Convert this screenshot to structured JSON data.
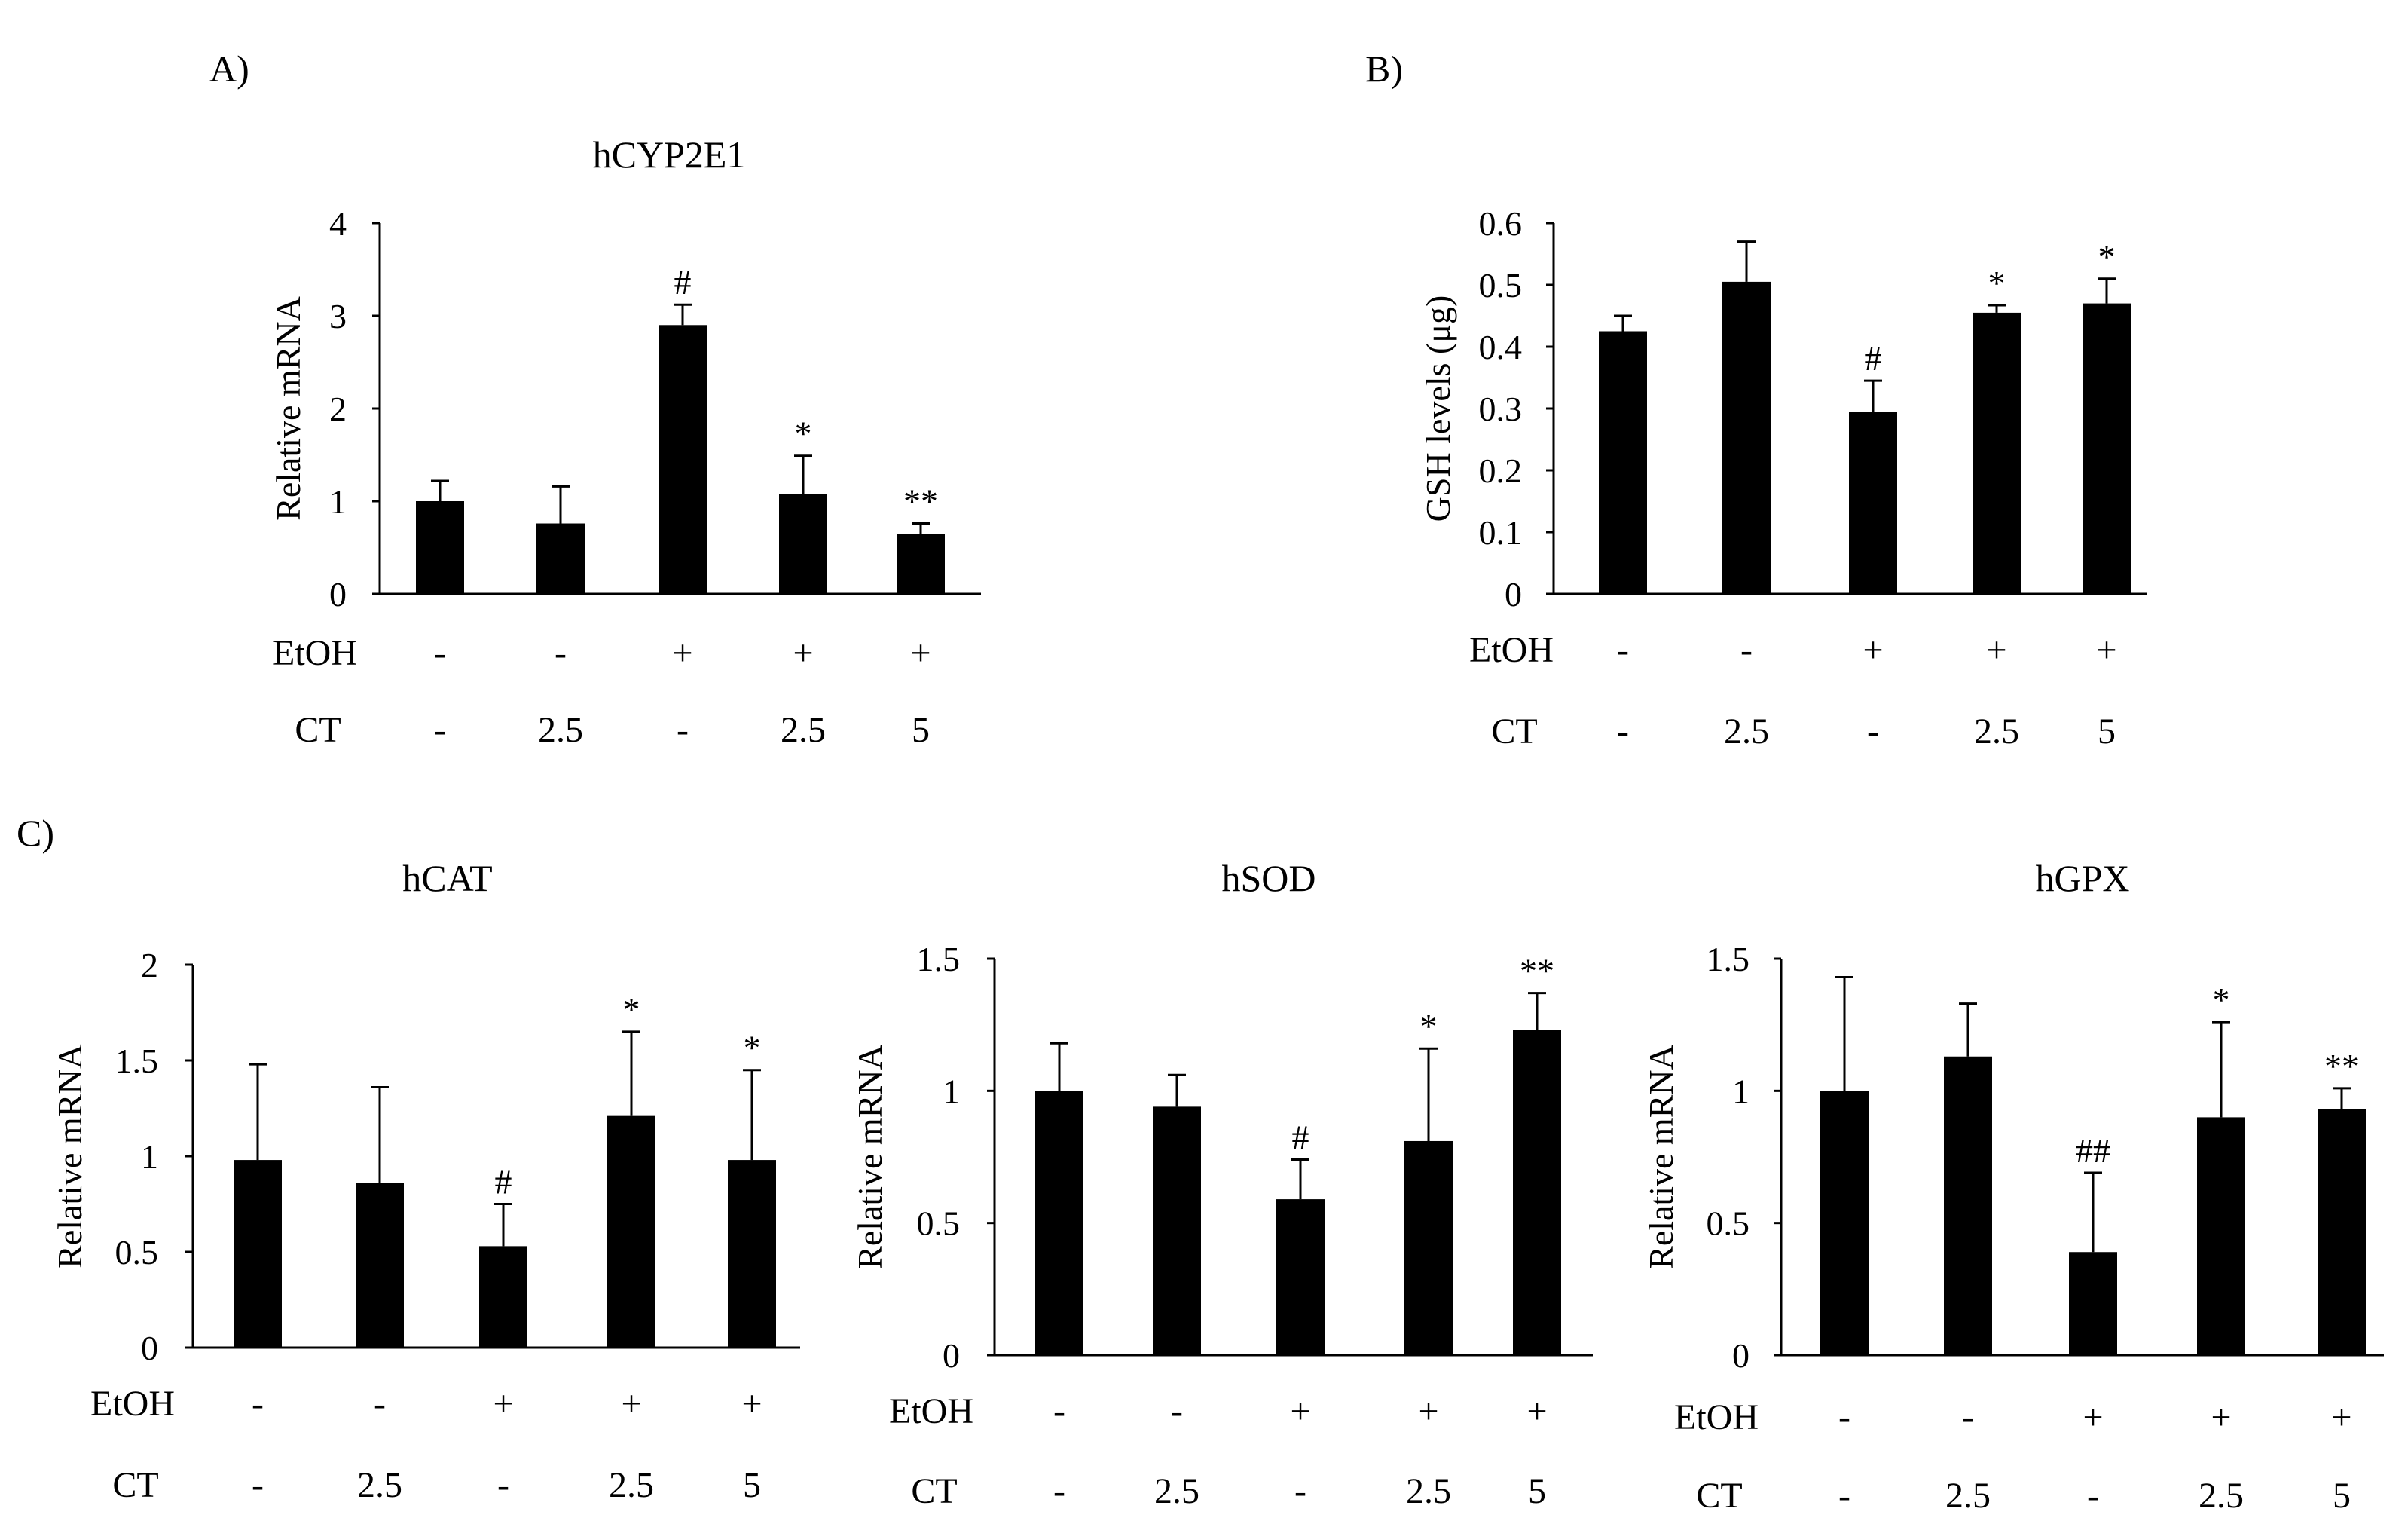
{
  "panel_labels": {
    "a": "A)",
    "b": "B)",
    "c": "C)"
  },
  "conditions": {
    "etoh_label": "EtOH",
    "ct_label": "CT",
    "etoh": [
      "-",
      "-",
      "+",
      "+",
      "+"
    ],
    "ct": [
      "-",
      "2.5",
      "-",
      "2.5",
      "5"
    ]
  },
  "colors": {
    "bar": "#000000",
    "axis": "#000000",
    "background": "#ffffff"
  },
  "chart_data": [
    {
      "id": "cyp2e1",
      "type": "bar",
      "title": "hCYP2E1",
      "ylabel": "Relative mRNA",
      "ylim": [
        0,
        4
      ],
      "yticks": [
        "0",
        "1",
        "2",
        "3",
        "4"
      ],
      "values": [
        1.0,
        0.76,
        2.9,
        1.08,
        0.65
      ],
      "errors": [
        0.22,
        0.4,
        0.22,
        0.41,
        0.11
      ],
      "annotations": [
        "",
        "",
        "#",
        "*",
        "**"
      ]
    },
    {
      "id": "gsh",
      "type": "bar",
      "title": "",
      "ylabel": "GSH levels  (μg)",
      "ylim": [
        0,
        0.6
      ],
      "yticks": [
        "0",
        "0.1",
        "0.2",
        "0.3",
        "0.4",
        "0.5",
        "0.6"
      ],
      "values": [
        0.425,
        0.505,
        0.295,
        0.455,
        0.47
      ],
      "errors": [
        0.025,
        0.065,
        0.05,
        0.012,
        0.04
      ],
      "annotations": [
        "",
        "",
        "#",
        "*",
        "*"
      ]
    },
    {
      "id": "cat",
      "type": "bar",
      "title": "hCAT",
      "ylabel": "Relative mRNA",
      "ylim": [
        0,
        2
      ],
      "yticks": [
        "0",
        "0.5",
        "1",
        "1.5",
        "2"
      ],
      "values": [
        0.98,
        0.86,
        0.53,
        1.21,
        0.98
      ],
      "errors": [
        0.5,
        0.5,
        0.22,
        0.44,
        0.47
      ],
      "annotations": [
        "",
        "",
        "#",
        "*",
        "*"
      ]
    },
    {
      "id": "sod",
      "type": "bar",
      "title": "hSOD",
      "ylabel": "Relative mRNA",
      "ylim": [
        0,
        1.5
      ],
      "yticks": [
        "0",
        "0.5",
        "1",
        "1.5"
      ],
      "values": [
        1.0,
        0.94,
        0.59,
        0.81,
        1.23
      ],
      "errors": [
        0.18,
        0.12,
        0.15,
        0.35,
        0.14
      ],
      "annotations": [
        "",
        "",
        "#",
        "*",
        "**"
      ]
    },
    {
      "id": "gpx",
      "type": "bar",
      "title": "hGPX",
      "ylabel": "Relative mRNA",
      "ylim": [
        0,
        1.5
      ],
      "yticks": [
        "0",
        "0.5",
        "1",
        "1.5"
      ],
      "values": [
        1.0,
        1.13,
        0.39,
        0.9,
        0.93
      ],
      "errors": [
        0.43,
        0.2,
        0.3,
        0.36,
        0.08
      ],
      "annotations": [
        "",
        "",
        "##",
        "*",
        "**"
      ]
    }
  ]
}
